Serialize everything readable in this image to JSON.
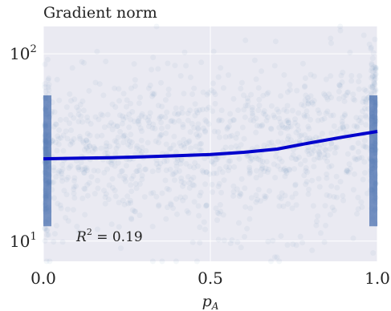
{
  "chart_data": {
    "type": "scatter",
    "title": "Gradient norm",
    "xlabel": "p",
    "xlabel_sub": "A",
    "ylabel": "",
    "xlim": [
      0.0,
      1.0
    ],
    "ylim": [
      7.8,
      140
    ],
    "y_scale": "log",
    "x_ticks": [
      "0.0",
      "0.5",
      "1.0"
    ],
    "x_tick_values": [
      0.0,
      0.5,
      1.0
    ],
    "y_ticks": [
      {
        "base": "10",
        "exp": "1",
        "value": 10
      },
      {
        "base": "10",
        "exp": "2",
        "value": 100
      }
    ],
    "background": "#eaeaf2",
    "point_color": "#4c72b0",
    "trend_color": "#0000cc",
    "scatter_description_density": "dense cloud of semi-transparent points, densest near x=0 and x=1",
    "trend_line": {
      "x": [
        0.0,
        0.1,
        0.2,
        0.3,
        0.4,
        0.5,
        0.6,
        0.7,
        0.8,
        0.9,
        1.0
      ],
      "y": [
        27.5,
        27.7,
        27.9,
        28.2,
        28.6,
        29.0,
        29.8,
        31.0,
        33.5,
        36.0,
        38.5
      ]
    },
    "annotation": {
      "text_base": "R",
      "text_exp": "2",
      "text_rest": " = 0.19"
    },
    "grid": true,
    "legend": "none"
  }
}
